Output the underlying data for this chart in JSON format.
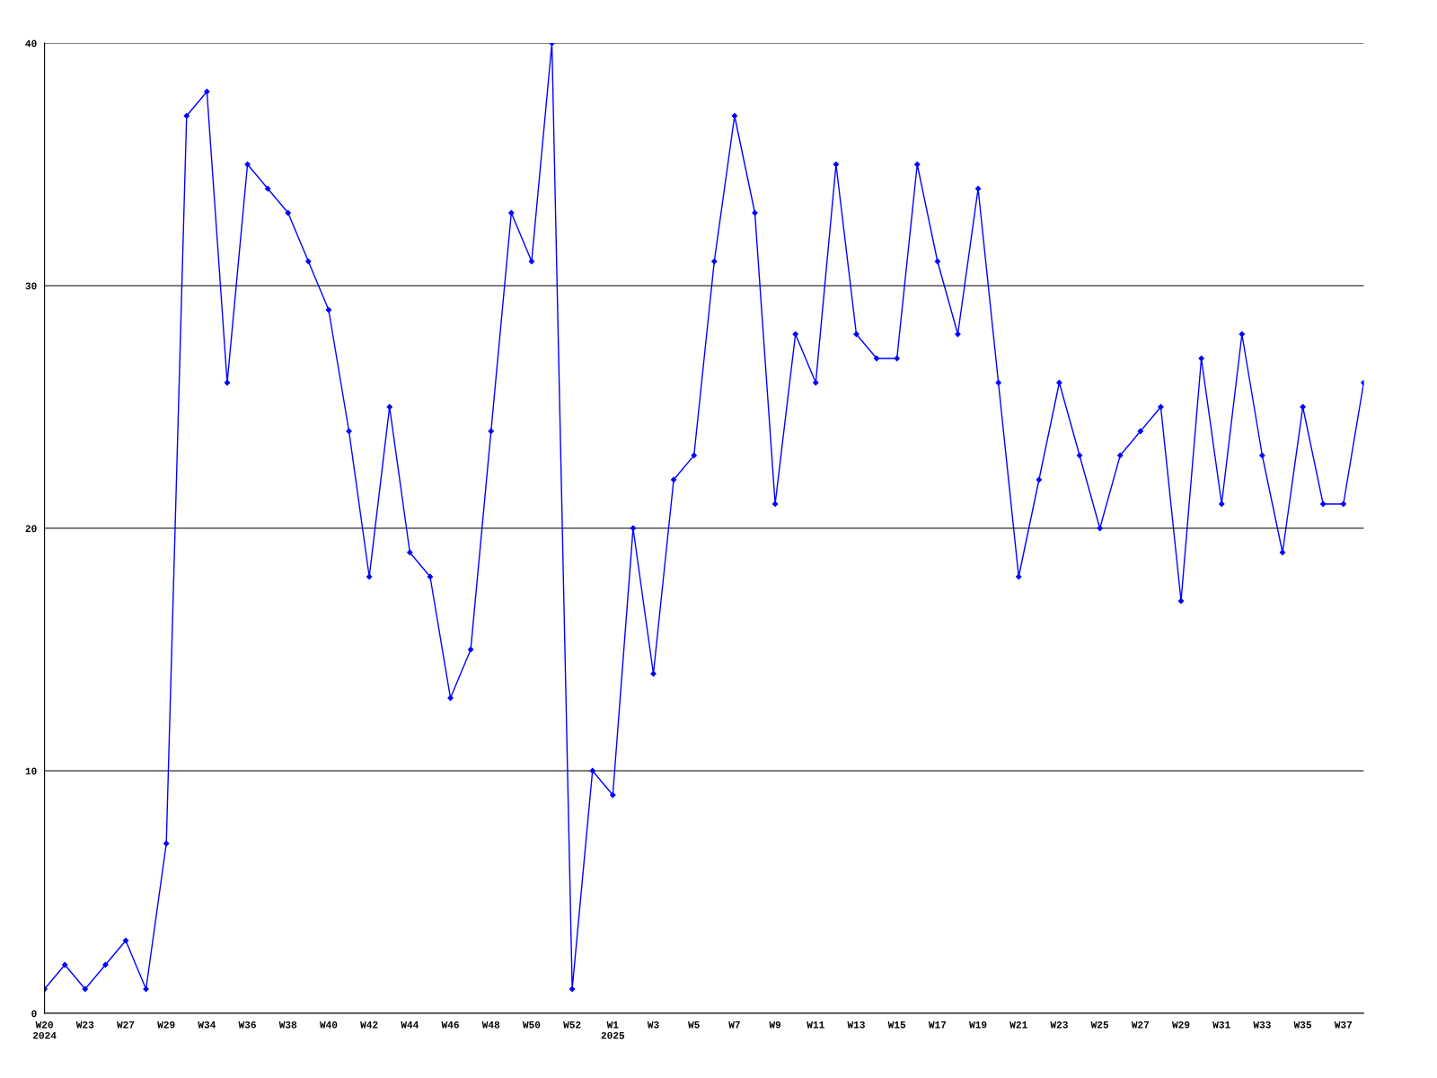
{
  "chart_data": {
    "type": "line",
    "categories": [
      "W20\n2024",
      null,
      "W23",
      null,
      "W27",
      null,
      "W29",
      null,
      "W34",
      null,
      "W36",
      null,
      "W38",
      null,
      "W40",
      null,
      "W42",
      null,
      "W44",
      null,
      "W46",
      null,
      "W48",
      null,
      "W50",
      null,
      "W52",
      null,
      "W1\n2025",
      null,
      "W3",
      null,
      "W5",
      null,
      "W7",
      null,
      "W9",
      null,
      "W11",
      null,
      "W13",
      null,
      "W15",
      null,
      "W17",
      null,
      "W19",
      null,
      "W21",
      null,
      "W23",
      null,
      "W25",
      null,
      "W27",
      null,
      "W29",
      null,
      "W31",
      null,
      "W33",
      null,
      "W35",
      null,
      "W37",
      null
    ],
    "series": [
      {
        "color": "#0000ff",
        "values": [
          1,
          2,
          1,
          2,
          3,
          1,
          7,
          37,
          38,
          26,
          35,
          34,
          33,
          31,
          29,
          24,
          18,
          25,
          19,
          18,
          13,
          15,
          24,
          33,
          31,
          40,
          1,
          10,
          9,
          20,
          14,
          22,
          23,
          31,
          37,
          33,
          21,
          28,
          26,
          35,
          28,
          27,
          27,
          35,
          31,
          28,
          34,
          26,
          18,
          22,
          26,
          23,
          20,
          23,
          24,
          25,
          17,
          27,
          21,
          28,
          23,
          19,
          25,
          21,
          21,
          26
        ]
      }
    ],
    "ylim": [
      0,
      40
    ],
    "yticks": [
      0,
      10,
      20,
      30,
      40
    ],
    "grid": "y",
    "marker": "diamond",
    "line_style": "solid"
  }
}
